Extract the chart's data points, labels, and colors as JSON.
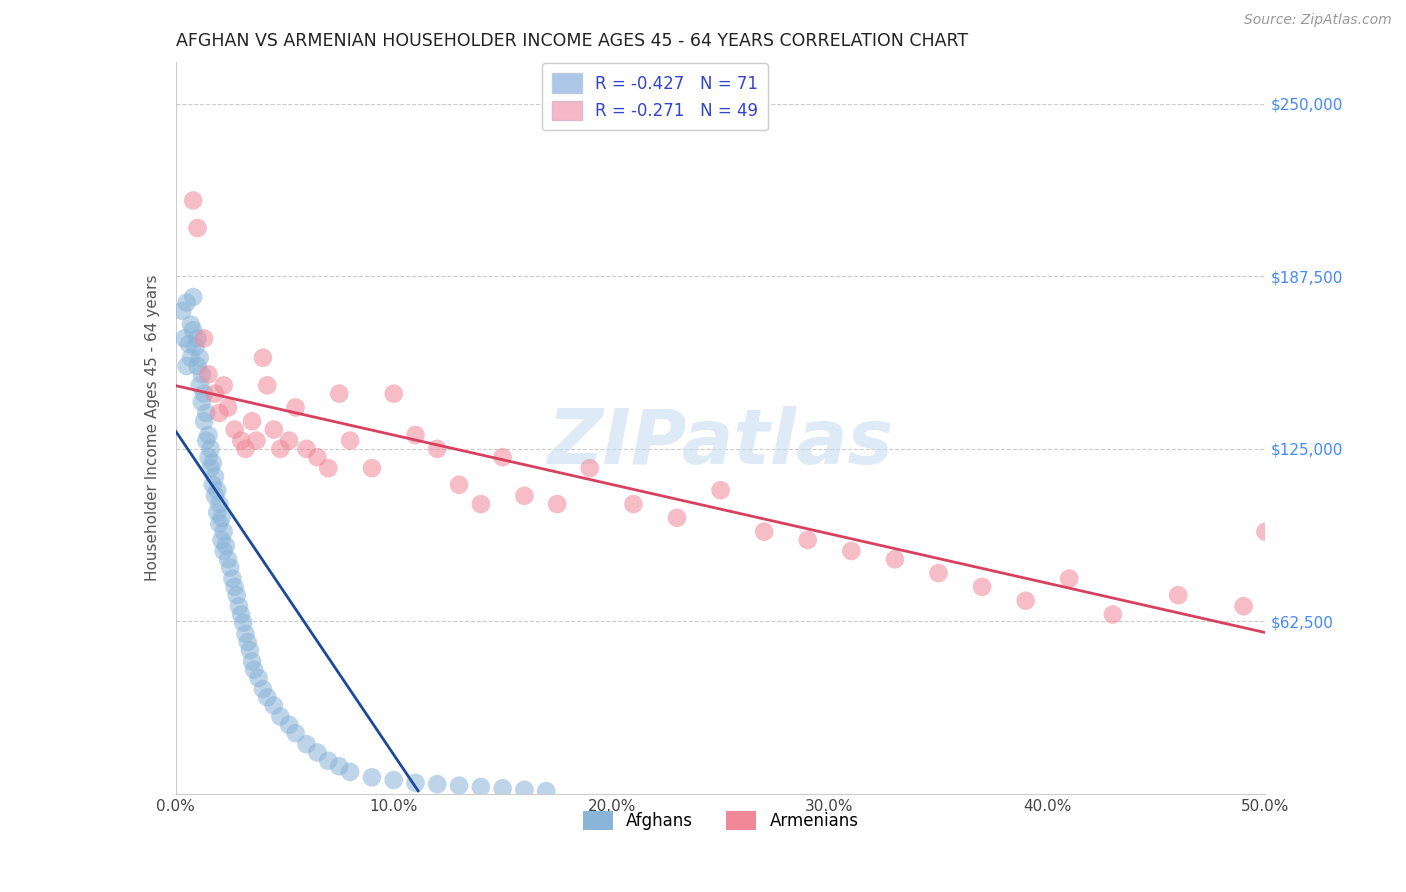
{
  "title": "AFGHAN VS ARMENIAN HOUSEHOLDER INCOME AGES 45 - 64 YEARS CORRELATION CHART",
  "source": "Source: ZipAtlas.com",
  "ylabel_label": "Householder Income Ages 45 - 64 years",
  "ytick_labels": [
    "$62,500",
    "$125,000",
    "$187,500",
    "$250,000"
  ],
  "ytick_values": [
    62500,
    125000,
    187500,
    250000
  ],
  "xtick_positions": [
    0.0,
    0.1,
    0.2,
    0.3,
    0.4,
    0.5
  ],
  "xtick_labels": [
    "0.0%",
    "10.0%",
    "20.0%",
    "30.0%",
    "40.0%",
    "50.0%"
  ],
  "xmin": 0.0,
  "xmax": 0.5,
  "ymin": 0,
  "ymax": 265000,
  "watermark": "ZIPatlas",
  "afghan_color": "#8ab4d8",
  "armenian_color": "#f08898",
  "afghan_line_color": "#1a4a9a",
  "armenian_line_color": "#d84060",
  "legend_afghan_color": "#aec6e8",
  "legend_armenian_color": "#f4b8c8",
  "legend_text_color": "#3344cc",
  "legend_line1": "R = -0.427   N = 71",
  "legend_line2": "R = -0.271   N = 49",
  "bottom_legend_afghans": "Afghans",
  "bottom_legend_armenians": "Armenians",
  "afghan_points_x": [
    0.003,
    0.004,
    0.005,
    0.005,
    0.006,
    0.007,
    0.007,
    0.008,
    0.008,
    0.009,
    0.01,
    0.01,
    0.011,
    0.011,
    0.012,
    0.012,
    0.013,
    0.013,
    0.014,
    0.014,
    0.015,
    0.015,
    0.016,
    0.016,
    0.017,
    0.017,
    0.018,
    0.018,
    0.019,
    0.019,
    0.02,
    0.02,
    0.021,
    0.021,
    0.022,
    0.022,
    0.023,
    0.024,
    0.025,
    0.026,
    0.027,
    0.028,
    0.029,
    0.03,
    0.031,
    0.032,
    0.033,
    0.034,
    0.035,
    0.036,
    0.038,
    0.04,
    0.042,
    0.045,
    0.048,
    0.052,
    0.055,
    0.06,
    0.065,
    0.07,
    0.075,
    0.08,
    0.09,
    0.1,
    0.11,
    0.12,
    0.13,
    0.14,
    0.15,
    0.16,
    0.17
  ],
  "afghan_points_y": [
    175000,
    165000,
    178000,
    155000,
    163000,
    170000,
    158000,
    180000,
    168000,
    162000,
    155000,
    165000,
    148000,
    158000,
    142000,
    152000,
    145000,
    135000,
    138000,
    128000,
    130000,
    122000,
    125000,
    118000,
    120000,
    112000,
    115000,
    108000,
    110000,
    102000,
    105000,
    98000,
    100000,
    92000,
    95000,
    88000,
    90000,
    85000,
    82000,
    78000,
    75000,
    72000,
    68000,
    65000,
    62000,
    58000,
    55000,
    52000,
    48000,
    45000,
    42000,
    38000,
    35000,
    32000,
    28000,
    25000,
    22000,
    18000,
    15000,
    12000,
    10000,
    8000,
    6000,
    5000,
    4000,
    3500,
    3000,
    2500,
    2000,
    1500,
    1000
  ],
  "armenian_points_x": [
    0.008,
    0.01,
    0.013,
    0.015,
    0.018,
    0.02,
    0.022,
    0.024,
    0.027,
    0.03,
    0.032,
    0.035,
    0.037,
    0.04,
    0.042,
    0.045,
    0.048,
    0.052,
    0.055,
    0.06,
    0.065,
    0.07,
    0.075,
    0.08,
    0.09,
    0.1,
    0.11,
    0.12,
    0.13,
    0.14,
    0.15,
    0.16,
    0.175,
    0.19,
    0.21,
    0.23,
    0.25,
    0.27,
    0.29,
    0.31,
    0.33,
    0.35,
    0.37,
    0.39,
    0.41,
    0.43,
    0.46,
    0.49,
    0.5
  ],
  "armenian_points_y": [
    215000,
    205000,
    165000,
    152000,
    145000,
    138000,
    148000,
    140000,
    132000,
    128000,
    125000,
    135000,
    128000,
    158000,
    148000,
    132000,
    125000,
    128000,
    140000,
    125000,
    122000,
    118000,
    145000,
    128000,
    118000,
    145000,
    130000,
    125000,
    112000,
    105000,
    122000,
    108000,
    105000,
    118000,
    105000,
    100000,
    110000,
    95000,
    92000,
    88000,
    85000,
    80000,
    75000,
    70000,
    78000,
    65000,
    72000,
    68000,
    95000
  ]
}
